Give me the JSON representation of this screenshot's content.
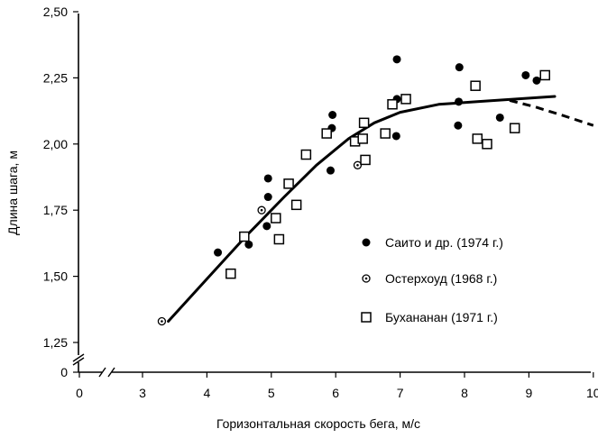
{
  "chart_data": {
    "type": "scatter",
    "xlabel": "Горизонтальная скорость бега, м/с",
    "ylabel": "Длина шага, м",
    "x_ticks": [
      "0",
      "3",
      "4",
      "5",
      "6",
      "7",
      "8",
      "9",
      "10"
    ],
    "y_ticks": [
      "0",
      "1,25",
      "1,50",
      "1,75",
      "2,00",
      "2,25",
      "2,50"
    ],
    "xlim": [
      3,
      10
    ],
    "ylim": [
      1.25,
      2.5
    ],
    "axis_break": true,
    "grid": false,
    "legend_position": "right",
    "series": [
      {
        "name": "Саито и др. (1974 г.)",
        "marker": "filled-circle",
        "points": [
          [
            4.17,
            1.59
          ],
          [
            4.65,
            1.62
          ],
          [
            4.93,
            1.69
          ],
          [
            4.95,
            1.8
          ],
          [
            4.95,
            1.87
          ],
          [
            5.92,
            1.9
          ],
          [
            5.94,
            2.06
          ],
          [
            5.95,
            2.11
          ],
          [
            6.94,
            2.03
          ],
          [
            6.95,
            2.17
          ],
          [
            6.95,
            2.32
          ],
          [
            7.9,
            2.07
          ],
          [
            7.91,
            2.16
          ],
          [
            7.92,
            2.29
          ],
          [
            8.55,
            2.1
          ],
          [
            8.95,
            2.26
          ],
          [
            9.12,
            2.24
          ]
        ]
      },
      {
        "name": "Остерхоуд (1968 г.)",
        "marker": "open-circle-dot",
        "points": [
          [
            3.3,
            1.33
          ],
          [
            4.85,
            1.75
          ],
          [
            6.34,
            1.92
          ]
        ]
      },
      {
        "name": "Бухананан (1971 г.)",
        "marker": "open-square",
        "points": [
          [
            4.37,
            1.51
          ],
          [
            4.58,
            1.65
          ],
          [
            5.07,
            1.72
          ],
          [
            5.12,
            1.64
          ],
          [
            5.27,
            1.85
          ],
          [
            5.39,
            1.77
          ],
          [
            5.54,
            1.96
          ],
          [
            5.86,
            2.04
          ],
          [
            6.3,
            2.01
          ],
          [
            6.42,
            2.02
          ],
          [
            6.44,
            2.08
          ],
          [
            6.46,
            1.94
          ],
          [
            6.77,
            2.04
          ],
          [
            6.88,
            2.15
          ],
          [
            7.09,
            2.17
          ],
          [
            8.17,
            2.22
          ],
          [
            8.2,
            2.02
          ],
          [
            8.35,
            2.0
          ],
          [
            8.78,
            2.06
          ],
          [
            9.25,
            2.26
          ]
        ]
      }
    ],
    "trend_line": {
      "solid": [
        [
          3.4,
          1.33
        ],
        [
          4.0,
          1.49
        ],
        [
          4.6,
          1.65
        ],
        [
          5.2,
          1.8
        ],
        [
          5.7,
          1.92
        ],
        [
          6.2,
          2.02
        ],
        [
          6.6,
          2.08
        ],
        [
          7.0,
          2.12
        ],
        [
          7.6,
          2.15
        ],
        [
          8.2,
          2.16
        ],
        [
          8.8,
          2.17
        ],
        [
          9.4,
          2.18
        ]
      ],
      "dashed": [
        [
          8.7,
          2.165
        ],
        [
          9.1,
          2.14
        ],
        [
          9.5,
          2.11
        ],
        [
          10.0,
          2.07
        ]
      ]
    }
  }
}
